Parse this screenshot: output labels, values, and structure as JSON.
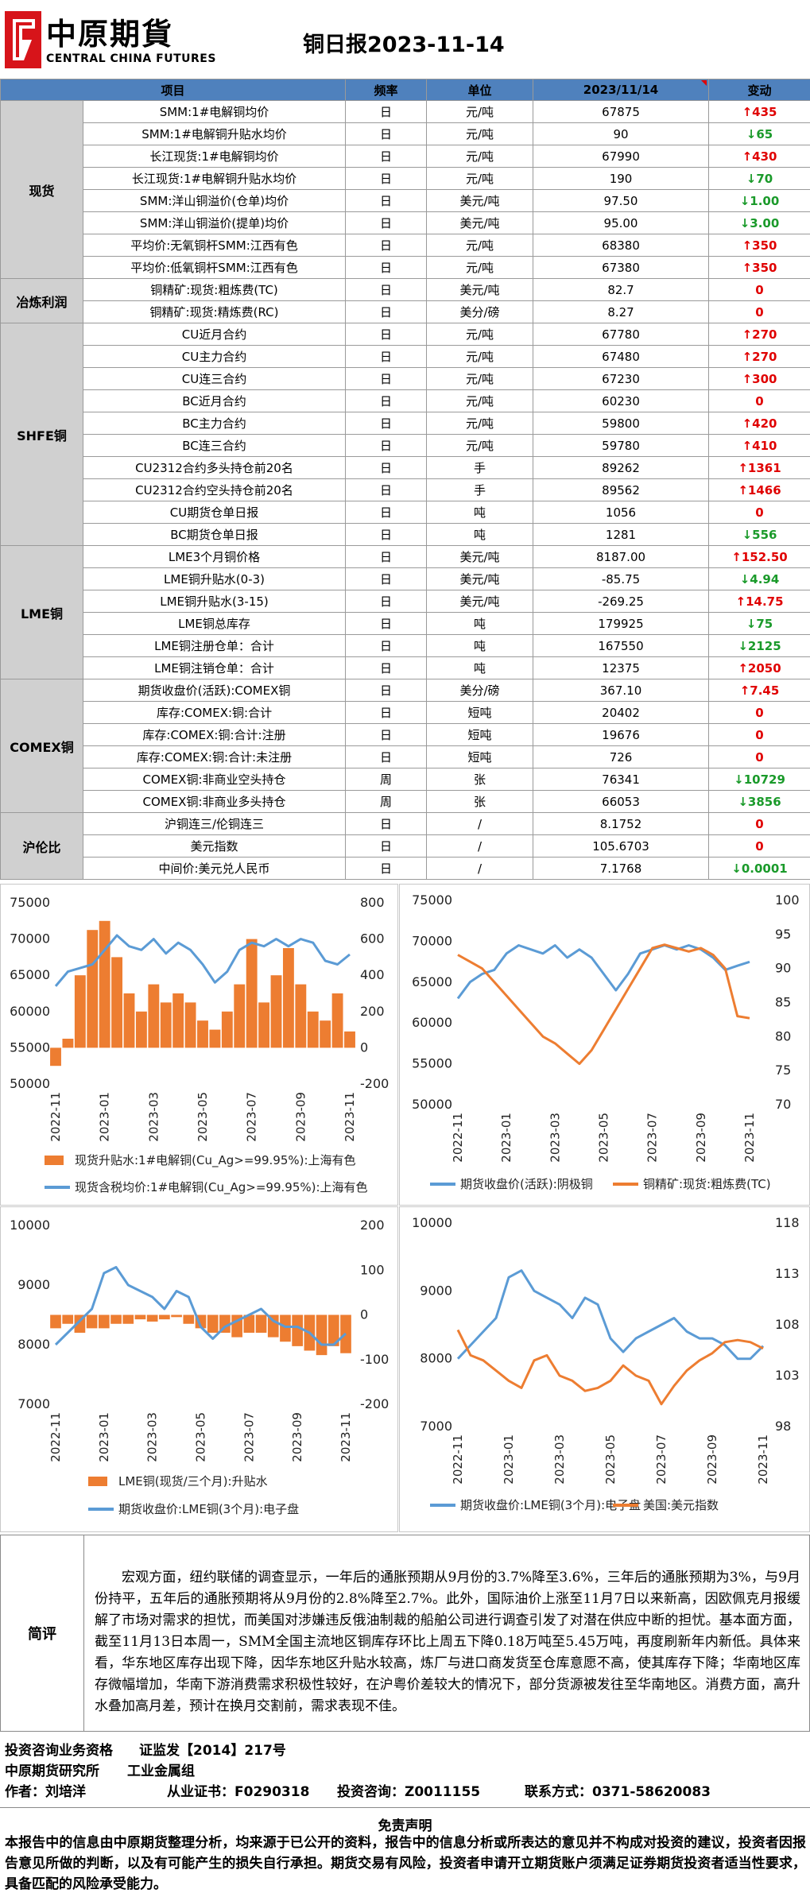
{
  "header": {
    "logo_cn": "中原期貨",
    "logo_en": "CENTRAL CHINA FUTURES",
    "title": "铜日报2023-11-14"
  },
  "table": {
    "header": [
      "项目",
      "频率",
      "单位",
      "2023/11/14",
      "变动"
    ],
    "groups": [
      {
        "name": "现货",
        "rows": [
          [
            "SMM:1#电解铜均价",
            "日",
            "元/吨",
            "67875",
            "↑435"
          ],
          [
            "SMM:1#电解铜升贴水均价",
            "日",
            "元/吨",
            "90",
            "↓65"
          ],
          [
            "长江现货:1#电解铜均价",
            "日",
            "元/吨",
            "67990",
            "↑430"
          ],
          [
            "长江现货:1#电解铜升贴水均价",
            "日",
            "元/吨",
            "190",
            "↓70"
          ],
          [
            "SMM:洋山铜溢价(仓单)均价",
            "日",
            "美元/吨",
            "97.50",
            "↓1.00"
          ],
          [
            "SMM:洋山铜溢价(提单)均价",
            "日",
            "美元/吨",
            "95.00",
            "↓3.00"
          ],
          [
            "平均价:无氧铜杆SMM:江西有色",
            "日",
            "元/吨",
            "68380",
            "↑350"
          ],
          [
            "平均价:低氧铜杆SMM:江西有色",
            "日",
            "元/吨",
            "67380",
            "↑350"
          ]
        ]
      },
      {
        "name": "冶炼利润",
        "rows": [
          [
            "铜精矿:现货:粗炼费(TC)",
            "日",
            "美元/吨",
            "82.7",
            "0"
          ],
          [
            "铜精矿:现货:精炼费(RC)",
            "日",
            "美分/磅",
            "8.27",
            "0"
          ]
        ]
      },
      {
        "name": "SHFE铜",
        "rows": [
          [
            "CU近月合约",
            "日",
            "元/吨",
            "67780",
            "↑270"
          ],
          [
            "CU主力合约",
            "日",
            "元/吨",
            "67480",
            "↑270"
          ],
          [
            "CU连三合约",
            "日",
            "元/吨",
            "67230",
            "↑300"
          ],
          [
            "BC近月合约",
            "日",
            "元/吨",
            "60230",
            "0"
          ],
          [
            "BC主力合约",
            "日",
            "元/吨",
            "59800",
            "↑420"
          ],
          [
            "BC连三合约",
            "日",
            "元/吨",
            "59780",
            "↑410"
          ],
          [
            "CU2312合约多头持仓前20名",
            "日",
            "手",
            "89262",
            "↑1361"
          ],
          [
            "CU2312合约空头持仓前20名",
            "日",
            "手",
            "89562",
            "↑1466"
          ],
          [
            "CU期货仓单日报",
            "日",
            "吨",
            "1056",
            "0"
          ],
          [
            "BC期货仓单日报",
            "日",
            "吨",
            "1281",
            "↓556"
          ]
        ]
      },
      {
        "name": "LME铜",
        "rows": [
          [
            "LME3个月铜价格",
            "日",
            "美元/吨",
            "8187.00",
            "↑152.50"
          ],
          [
            "LME铜升贴水(0-3)",
            "日",
            "美元/吨",
            "-85.75",
            "↓4.94"
          ],
          [
            "LME铜升贴水(3-15)",
            "日",
            "美元/吨",
            "-269.25",
            "↑14.75"
          ],
          [
            "LME铜总库存",
            "日",
            "吨",
            "179925",
            "↓75"
          ],
          [
            "LME铜注册仓单：合计",
            "日",
            "吨",
            "167550",
            "↓2125"
          ],
          [
            "LME铜注销仓单：合计",
            "日",
            "吨",
            "12375",
            "↑2050"
          ]
        ]
      },
      {
        "name": "COMEX铜",
        "rows": [
          [
            "期货收盘价(活跃):COMEX铜",
            "日",
            "美分/磅",
            "367.10",
            "↑7.45"
          ],
          [
            "库存:COMEX:铜:合计",
            "日",
            "短吨",
            "20402",
            "0"
          ],
          [
            "库存:COMEX:铜:合计:注册",
            "日",
            "短吨",
            "19676",
            "0"
          ],
          [
            "库存:COMEX:铜:合计:未注册",
            "日",
            "短吨",
            "726",
            "0"
          ],
          [
            "COMEX铜:非商业空头持仓",
            "周",
            "张",
            "76341",
            "↓10729"
          ],
          [
            "COMEX铜:非商业多头持仓",
            "周",
            "张",
            "66053",
            "↓3856"
          ]
        ]
      },
      {
        "name": "沪伦比",
        "rows": [
          [
            "沪铜连三/伦铜连三",
            "日",
            "/",
            "8.1752",
            "0"
          ],
          [
            "美元指数",
            "日",
            "/",
            "105.6703",
            "0"
          ],
          [
            "中间价:美元兑人民币",
            "日",
            "/",
            "7.1768",
            "↓0.0001"
          ]
        ]
      }
    ]
  },
  "chart_data": [
    {
      "type": "bar-line",
      "categories": [
        "2022-11",
        null,
        null,
        null,
        "2023-01",
        null,
        null,
        null,
        "2023-03",
        null,
        null,
        null,
        "2023-05",
        null,
        null,
        null,
        "2023-07",
        null,
        null,
        null,
        "2023-09",
        null,
        null,
        null,
        "2023-11"
      ],
      "ylim": [
        50000,
        75000
      ],
      "yticks": [
        50000,
        55000,
        60000,
        65000,
        70000,
        75000
      ],
      "y2lim": [
        -200,
        800
      ],
      "y2ticks": [
        -200,
        0,
        200,
        400,
        600,
        800
      ],
      "series": [
        {
          "name": "现货升贴水:1#电解铜(Cu_Ag>=99.95%):上海有色",
          "color": "#ed7d31",
          "axis": "y2",
          "values": [
            -100,
            50,
            400,
            650,
            700,
            500,
            300,
            200,
            350,
            250,
            300,
            250,
            150,
            100,
            200,
            350,
            600,
            250,
            400,
            550,
            350,
            200,
            150,
            300,
            90
          ]
        },
        {
          "name": "现货含税均价:1#电解铜(Cu_Ag>=99.95%):上海有色",
          "color": "#5b9bd5",
          "values": [
            63500,
            65500,
            66000,
            66500,
            68500,
            70500,
            69000,
            68500,
            70000,
            68000,
            69500,
            68500,
            66500,
            64000,
            65500,
            68500,
            69500,
            69000,
            70000,
            69000,
            70000,
            69500,
            67000,
            66500,
            67875
          ]
        }
      ]
    },
    {
      "type": "line",
      "categories": [
        "2022-11",
        null,
        null,
        null,
        "2023-01",
        null,
        null,
        null,
        "2023-03",
        null,
        null,
        null,
        "2023-05",
        null,
        null,
        null,
        "2023-07",
        null,
        null,
        null,
        "2023-09",
        null,
        null,
        null,
        "2023-11"
      ],
      "ylim": [
        50000,
        75000
      ],
      "yticks": [
        50000,
        55000,
        60000,
        65000,
        70000,
        75000
      ],
      "y2lim": [
        70,
        100
      ],
      "y2ticks": [
        70,
        75,
        80,
        85,
        90,
        95,
        100
      ],
      "series": [
        {
          "name": "期货收盘价(活跃):阴极铜",
          "color": "#5b9bd5",
          "values": [
            63000,
            65000,
            66000,
            66500,
            68500,
            69500,
            69000,
            68500,
            69500,
            68000,
            69000,
            68000,
            66000,
            64000,
            66000,
            68500,
            69000,
            69500,
            69000,
            69500,
            69000,
            68000,
            66500,
            67000,
            67480
          ]
        },
        {
          "name": "铜精矿:现货:粗炼费(TC)",
          "color": "#ed7d31",
          "axis": "y2",
          "values": [
            92,
            91,
            90,
            88,
            86,
            84,
            82,
            80,
            79,
            77.5,
            76,
            78,
            81,
            84,
            87,
            90,
            93,
            93.5,
            93,
            92.5,
            93,
            92,
            90,
            83,
            82.7
          ]
        }
      ]
    },
    {
      "type": "bar-line",
      "categories": [
        "2022-11",
        null,
        null,
        null,
        "2023-01",
        null,
        null,
        null,
        "2023-03",
        null,
        null,
        null,
        "2023-05",
        null,
        null,
        null,
        "2023-07",
        null,
        null,
        null,
        "2023-09",
        null,
        null,
        null,
        "2023-11"
      ],
      "ylim": [
        7000,
        10000
      ],
      "yticks": [
        7000,
        8000,
        9000,
        10000
      ],
      "y2lim": [
        -200,
        200
      ],
      "y2ticks": [
        -200,
        -100,
        0,
        100,
        200
      ],
      "series": [
        {
          "name": "LME铜(现货/三个月):升贴水",
          "color": "#ed7d31",
          "axis": "y2",
          "values": [
            -30,
            -20,
            -40,
            -30,
            -30,
            -20,
            -20,
            -10,
            -15,
            -10,
            -5,
            -20,
            -30,
            -40,
            -40,
            -50,
            -40,
            -40,
            -50,
            -60,
            -70,
            -80,
            -90,
            -70,
            -85.75
          ]
        },
        {
          "name": "期货收盘价:LME铜(3个月):电子盘",
          "color": "#5b9bd5",
          "values": [
            8000,
            8200,
            8400,
            8600,
            9200,
            9300,
            9000,
            8900,
            8800,
            8600,
            8900,
            8800,
            8300,
            8100,
            8300,
            8400,
            8500,
            8600,
            8400,
            8300,
            8300,
            8200,
            8000,
            8000,
            8187
          ]
        }
      ]
    },
    {
      "type": "line",
      "categories": [
        "2022-11",
        null,
        null,
        null,
        "2023-01",
        null,
        null,
        null,
        "2023-03",
        null,
        null,
        null,
        "2023-05",
        null,
        null,
        null,
        "2023-07",
        null,
        null,
        null,
        "2023-09",
        null,
        null,
        null,
        "2023-11"
      ],
      "ylim": [
        7000,
        10000
      ],
      "yticks": [
        7000,
        8000,
        9000,
        10000
      ],
      "y2lim": [
        98,
        118
      ],
      "y2ticks": [
        98,
        103,
        108,
        113,
        118
      ],
      "series": [
        {
          "name": "期货收盘价:LME铜(3个月):电子盘",
          "color": "#5b9bd5",
          "values": [
            8000,
            8200,
            8400,
            8600,
            9200,
            9300,
            9000,
            8900,
            8800,
            8600,
            8900,
            8800,
            8300,
            8100,
            8300,
            8400,
            8500,
            8600,
            8400,
            8300,
            8300,
            8200,
            8000,
            8000,
            8187
          ]
        },
        {
          "name": "美国:美元指数",
          "color": "#ed7d31",
          "axis": "y2",
          "values": [
            107.5,
            105,
            104.5,
            103.5,
            102.5,
            101.8,
            104.5,
            105,
            103,
            102.5,
            101.5,
            101.8,
            102.5,
            104,
            103,
            102.5,
            100.2,
            102,
            103.5,
            104.5,
            105.2,
            106.3,
            106.5,
            106.3,
            105.67
          ]
        }
      ]
    }
  ],
  "commentary": {
    "label": "简评",
    "text": "宏观方面，纽约联储的调查显示，一年后的通胀预期从9月份的3.7%降至3.6%，三年后的通胀预期为3%，与9月份持平，五年后的通胀预期将从9月份的2.8%降至2.7%。此外，国际油价上涨至11月7日以来新高，因欧佩克月报缓解了市场对需求的担忧，而美国对涉嫌违反俄油制裁的船舶公司进行调查引发了对潜在供应中断的担忧。基本面方面，截至11月13日本周一，SMM全国主流地区铜库存环比上周五下降0.18万吨至5.45万吨，再度刷新年内新低。具体来看，华东地区库存出现下降，因华东地区升贴水较高，炼厂与进口商发货至仓库意愿不高，使其库存下降；华南地区库存微幅增加，华南下游消费需求积极性较好，在沪粤价差较大的情况下，部分货源被发往至华南地区。消费方面，高升水叠加高月差，预计在换月交割前，需求表现不佳。"
  },
  "footer": {
    "qualification": "投资咨询业务资格",
    "license": "证监发【2014】217号",
    "institute": "中原期货研究所",
    "group": "工业金属组",
    "author": "作者：刘培洋",
    "cert": "从业证书：F0290318",
    "consult": "投资咨询：Z0011155",
    "contact": "联系方式：0371-58620083"
  },
  "disclaimer": {
    "title": "免责声明",
    "text": "本报告中的信息由中原期货整理分析，均来源于已公开的资料，报告中的信息分析或所表达的意见并不构成对投资的建议，投资者因报告意见所做的判断，以及有可能产生的损失自行承担。期货交易有风险，投资者申请开立期货账户须满足证券期货投资者适当性要求，具备匹配的风险承受能力。"
  }
}
